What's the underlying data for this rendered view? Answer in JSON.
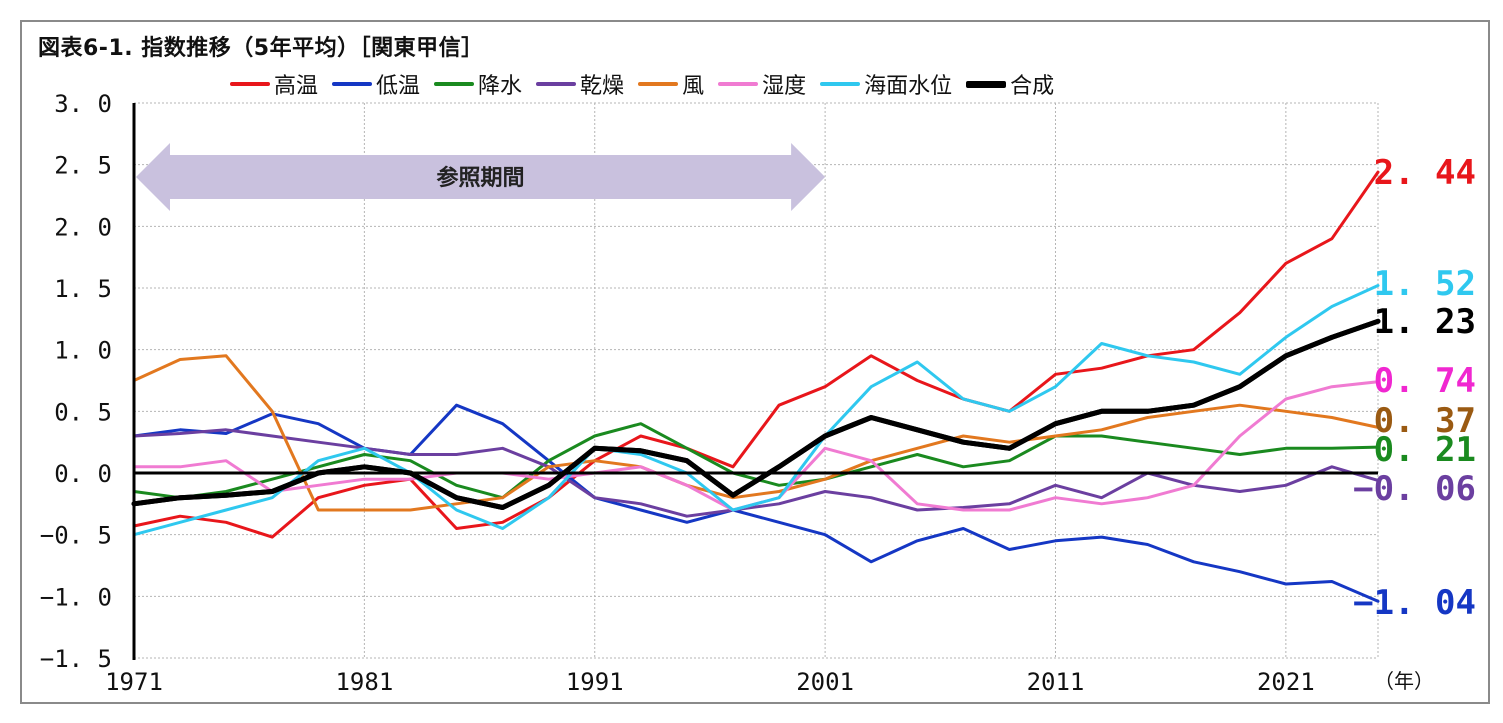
{
  "title": "図表6-1. 指数推移（5年平均）［関東甲信］",
  "legend": [
    {
      "name": "高温",
      "color": "#e8161b"
    },
    {
      "name": "低温",
      "color": "#1537c4"
    },
    {
      "name": "降水",
      "color": "#1a8a1f"
    },
    {
      "name": "乾燥",
      "color": "#6b3fa0"
    },
    {
      "name": "風",
      "color": "#e2781f"
    },
    {
      "name": "湿度",
      "color": "#f07bd2"
    },
    {
      "name": "海面水位",
      "color": "#2fc8ef"
    },
    {
      "name": "合成",
      "color": "#000000"
    }
  ],
  "chart_data": {
    "type": "line",
    "title": "図表6-1. 指数推移（5年平均）［関東甲信］",
    "xlabel": "（年）",
    "ylabel": "",
    "xlim": [
      1971,
      2025
    ],
    "ylim": [
      -1.5,
      3.0
    ],
    "yticks": [
      "3. 0",
      "2. 5",
      "2. 0",
      "1. 5",
      "1. 0",
      "0. 5",
      "0. 0",
      "−0. 5",
      "−1. 0",
      "−1. 5"
    ],
    "ytick_values": [
      3.0,
      2.5,
      2.0,
      1.5,
      1.0,
      0.5,
      0.0,
      -0.5,
      -1.0,
      -1.5
    ],
    "xticks": [
      "1971",
      "1981",
      "1991",
      "2001",
      "2011",
      "2021"
    ],
    "xtick_values": [
      1971,
      1981,
      1991,
      2001,
      2011,
      2021
    ],
    "grid": true,
    "legend_position": "top",
    "annotation": {
      "text": "参照期間",
      "x_start": 1971,
      "x_end": 2001,
      "y": 2.4
    },
    "end_labels": [
      {
        "text": "2. 44",
        "value": 2.44,
        "color": "#e8161b"
      },
      {
        "text": "1. 52",
        "value": 1.52,
        "color": "#2fc8ef"
      },
      {
        "text": "1. 23",
        "value": 1.23,
        "color": "#000000"
      },
      {
        "text": "0. 74",
        "value": 0.74,
        "color": "#f027d0"
      },
      {
        "text": "0. 37",
        "value": 0.37,
        "color": "#9a5a12"
      },
      {
        "text": "0. 21",
        "value": 0.21,
        "color": "#1a8a1f"
      },
      {
        "text": "−0. 06",
        "value": -0.06,
        "color": "#6b3fa0"
      },
      {
        "text": "−1. 04",
        "value": -1.04,
        "color": "#1537c4"
      }
    ],
    "series": [
      {
        "name": "高温",
        "color": "#e8161b",
        "x": [
          1971,
          1973,
          1975,
          1977,
          1979,
          1981,
          1983,
          1985,
          1987,
          1989,
          1991,
          1993,
          1995,
          1997,
          1999,
          2001,
          2003,
          2005,
          2007,
          2009,
          2011,
          2013,
          2015,
          2017,
          2019,
          2021,
          2023,
          2025
        ],
        "values": [
          -0.43,
          -0.35,
          -0.4,
          -0.52,
          -0.2,
          -0.1,
          -0.05,
          -0.45,
          -0.4,
          -0.2,
          0.1,
          0.3,
          0.2,
          0.05,
          0.55,
          0.7,
          0.95,
          0.75,
          0.6,
          0.5,
          0.8,
          0.85,
          0.95,
          1.0,
          1.3,
          1.7,
          1.9,
          2.44
        ]
      },
      {
        "name": "低温",
        "color": "#1537c4",
        "x": [
          1971,
          1973,
          1975,
          1977,
          1979,
          1981,
          1983,
          1985,
          1987,
          1989,
          1991,
          1993,
          1995,
          1997,
          1999,
          2001,
          2003,
          2005,
          2007,
          2009,
          2011,
          2013,
          2015,
          2017,
          2019,
          2021,
          2023,
          2025
        ],
        "values": [
          0.3,
          0.35,
          0.32,
          0.48,
          0.4,
          0.2,
          0.15,
          0.55,
          0.4,
          0.1,
          -0.2,
          -0.3,
          -0.4,
          -0.3,
          -0.4,
          -0.5,
          -0.72,
          -0.55,
          -0.45,
          -0.62,
          -0.55,
          -0.52,
          -0.58,
          -0.72,
          -0.8,
          -0.9,
          -0.88,
          -1.04
        ]
      },
      {
        "name": "降水",
        "color": "#1a8a1f",
        "x": [
          1971,
          1973,
          1975,
          1977,
          1979,
          1981,
          1983,
          1985,
          1987,
          1989,
          1991,
          1993,
          1995,
          1997,
          1999,
          2001,
          2003,
          2005,
          2007,
          2009,
          2011,
          2013,
          2015,
          2017,
          2019,
          2021,
          2023,
          2025
        ],
        "values": [
          -0.15,
          -0.2,
          -0.15,
          -0.05,
          0.05,
          0.15,
          0.1,
          -0.1,
          -0.2,
          0.1,
          0.3,
          0.4,
          0.2,
          0.0,
          -0.1,
          -0.05,
          0.05,
          0.15,
          0.05,
          0.1,
          0.3,
          0.3,
          0.25,
          0.2,
          0.15,
          0.2,
          0.2,
          0.21
        ]
      },
      {
        "name": "乾燥",
        "color": "#6b3fa0",
        "x": [
          1971,
          1973,
          1975,
          1977,
          1979,
          1981,
          1983,
          1985,
          1987,
          1989,
          1991,
          1993,
          1995,
          1997,
          1999,
          2001,
          2003,
          2005,
          2007,
          2009,
          2011,
          2013,
          2015,
          2017,
          2019,
          2021,
          2023,
          2025
        ],
        "values": [
          0.3,
          0.32,
          0.35,
          0.3,
          0.25,
          0.2,
          0.15,
          0.15,
          0.2,
          0.05,
          -0.2,
          -0.25,
          -0.35,
          -0.3,
          -0.25,
          -0.15,
          -0.2,
          -0.3,
          -0.28,
          -0.25,
          -0.1,
          -0.2,
          0.0,
          -0.1,
          -0.15,
          -0.1,
          0.05,
          -0.06
        ]
      },
      {
        "name": "風",
        "color": "#e2781f",
        "x": [
          1971,
          1973,
          1975,
          1977,
          1979,
          1981,
          1983,
          1985,
          1987,
          1989,
          1991,
          1993,
          1995,
          1997,
          1999,
          2001,
          2003,
          2005,
          2007,
          2009,
          2011,
          2013,
          2015,
          2017,
          2019,
          2021,
          2023,
          2025
        ],
        "values": [
          0.75,
          0.92,
          0.95,
          0.5,
          -0.3,
          -0.3,
          -0.3,
          -0.25,
          -0.2,
          0.05,
          0.1,
          0.05,
          -0.1,
          -0.2,
          -0.15,
          -0.05,
          0.1,
          0.2,
          0.3,
          0.25,
          0.3,
          0.35,
          0.45,
          0.5,
          0.55,
          0.5,
          0.45,
          0.37
        ]
      },
      {
        "name": "湿度",
        "color": "#f07bd2",
        "x": [
          1971,
          1973,
          1975,
          1977,
          1979,
          1981,
          1983,
          1985,
          1987,
          1989,
          1991,
          1993,
          1995,
          1997,
          1999,
          2001,
          2003,
          2005,
          2007,
          2009,
          2011,
          2013,
          2015,
          2017,
          2019,
          2021,
          2023,
          2025
        ],
        "values": [
          0.05,
          0.05,
          0.1,
          -0.15,
          -0.1,
          -0.05,
          -0.05,
          0.0,
          0.0,
          -0.05,
          0.0,
          0.05,
          -0.1,
          -0.3,
          -0.2,
          0.2,
          0.1,
          -0.25,
          -0.3,
          -0.3,
          -0.2,
          -0.25,
          -0.2,
          -0.1,
          0.3,
          0.6,
          0.7,
          0.74
        ]
      },
      {
        "name": "海面水位",
        "color": "#2fc8ef",
        "x": [
          1971,
          1973,
          1975,
          1977,
          1979,
          1981,
          1983,
          1985,
          1987,
          1989,
          1991,
          1993,
          1995,
          1997,
          1999,
          2001,
          2003,
          2005,
          2007,
          2009,
          2011,
          2013,
          2015,
          2017,
          2019,
          2021,
          2023,
          2025
        ],
        "values": [
          -0.5,
          -0.4,
          -0.3,
          -0.2,
          0.1,
          0.2,
          0.0,
          -0.3,
          -0.45,
          -0.2,
          0.2,
          0.15,
          0.0,
          -0.3,
          -0.2,
          0.3,
          0.7,
          0.9,
          0.6,
          0.5,
          0.7,
          1.05,
          0.95,
          0.9,
          0.8,
          1.1,
          1.35,
          1.52
        ]
      },
      {
        "name": "合成",
        "color": "#000000",
        "x": [
          1971,
          1973,
          1975,
          1977,
          1979,
          1981,
          1983,
          1985,
          1987,
          1989,
          1991,
          1993,
          1995,
          1997,
          1999,
          2001,
          2003,
          2005,
          2007,
          2009,
          2011,
          2013,
          2015,
          2017,
          2019,
          2021,
          2023,
          2025
        ],
        "values": [
          -0.25,
          -0.2,
          -0.18,
          -0.15,
          0.0,
          0.05,
          0.0,
          -0.2,
          -0.28,
          -0.1,
          0.2,
          0.18,
          0.1,
          -0.18,
          0.05,
          0.3,
          0.45,
          0.35,
          0.25,
          0.2,
          0.4,
          0.5,
          0.5,
          0.55,
          0.7,
          0.95,
          1.1,
          1.23
        ]
      }
    ]
  }
}
